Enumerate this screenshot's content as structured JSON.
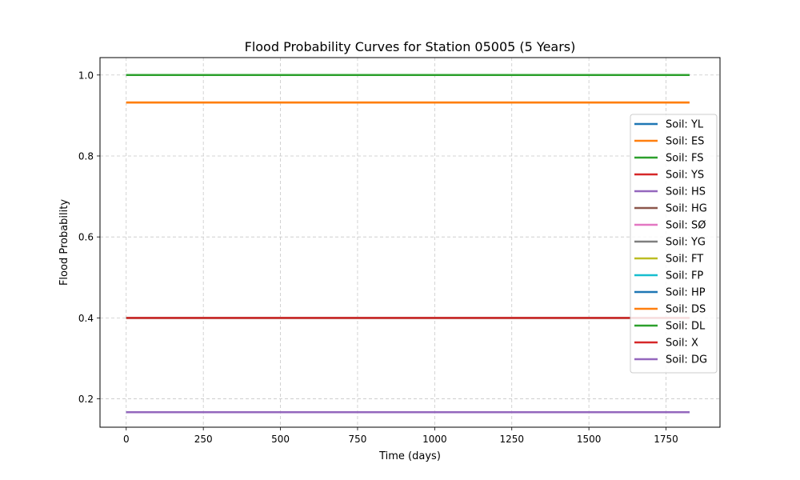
{
  "chart_data": {
    "type": "line",
    "title": "Flood Probability Curves for Station 05005 (5 Years)",
    "xlabel": "Time (days)",
    "ylabel": "Flood Probability",
    "xlim": [
      -85,
      1925
    ],
    "ylim": [
      0.13,
      1.043
    ],
    "x_ticks": [
      0,
      250,
      500,
      750,
      1000,
      1250,
      1500,
      1750
    ],
    "y_ticks": [
      0.2,
      0.4,
      0.6,
      0.8,
      1.0
    ],
    "y_tick_labels": [
      "0.2",
      "0.4",
      "0.6",
      "0.8",
      "1.0"
    ],
    "grid": true,
    "grid_style": "dashed",
    "legend_position": "right",
    "x_range": [
      0,
      1826
    ],
    "series": [
      {
        "name": "Soil: YL",
        "color": "#1f77b4",
        "y": 1.0
      },
      {
        "name": "Soil: ES",
        "color": "#ff7f0e",
        "y": 0.932
      },
      {
        "name": "Soil: FS",
        "color": "#2ca02c",
        "y": 1.0
      },
      {
        "name": "Soil: YS",
        "color": "#d62728",
        "y": 0.4
      },
      {
        "name": "Soil: HS",
        "color": "#9467bd",
        "y": 0.167
      },
      {
        "name": "Soil: HG",
        "color": "#8c564b",
        "y": 0.4
      },
      {
        "name": "Soil: SØ",
        "color": "#e377c2",
        "y": 0.4
      },
      {
        "name": "Soil: YG",
        "color": "#7f7f7f",
        "y": 0.4
      },
      {
        "name": "Soil: FT",
        "color": "#bcbd22",
        "y": 0.4
      },
      {
        "name": "Soil: FP",
        "color": "#17becf",
        "y": 0.4
      },
      {
        "name": "Soil: HP",
        "color": "#1f77b4",
        "y": 0.167
      },
      {
        "name": "Soil: DS",
        "color": "#ff7f0e",
        "y": 0.932
      },
      {
        "name": "Soil: DL",
        "color": "#2ca02c",
        "y": 1.0
      },
      {
        "name": "Soil: X",
        "color": "#d62728",
        "y": 0.4
      },
      {
        "name": "Soil: DG",
        "color": "#9467bd",
        "y": 0.167
      }
    ]
  }
}
